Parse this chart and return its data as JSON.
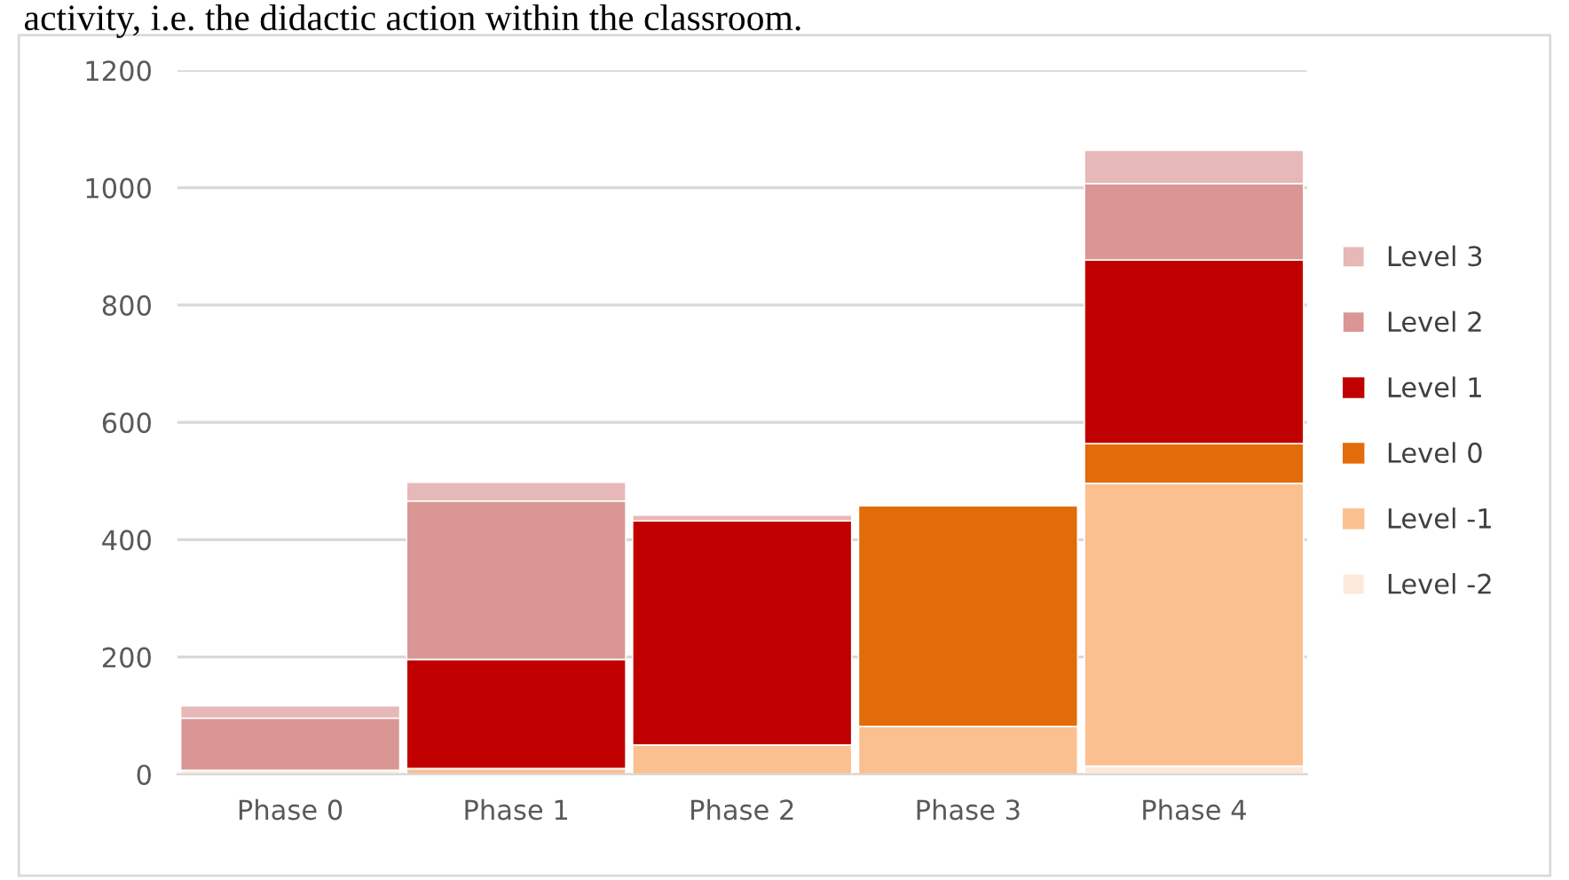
{
  "chart_data": {
    "type": "bar",
    "stacked": true,
    "annotations": [
      "activity, i.e. the didactic action within the classroom."
    ],
    "categories": [
      "Phase 0",
      "Phase 1",
      "Phase 2",
      "Phase 3",
      "Phase 4"
    ],
    "series": [
      {
        "name": "Level -2",
        "color": "#fde9d9",
        "values": [
          7,
          null,
          0,
          0,
          14
        ]
      },
      {
        "name": "Level -1",
        "color": "#fac090",
        "values": [
          0,
          10,
          50,
          82,
          482
        ]
      },
      {
        "name": "Level 0",
        "color": "#e26b0a",
        "values": [
          0,
          0,
          0,
          376,
          68
        ]
      },
      {
        "name": "Level 1",
        "color": "#c00000",
        "values": [
          0,
          186,
          382,
          0,
          313
        ]
      },
      {
        "name": "Level 2",
        "color": "#d99694",
        "values": [
          89,
          270,
          0,
          0,
          130
        ]
      },
      {
        "name": "Level 3",
        "color": "#e6b8b7",
        "values": [
          21,
          32,
          10,
          0,
          57
        ]
      }
    ],
    "ylim": [
      0,
      1200
    ],
    "yticks": [
      0,
      200,
      400,
      600,
      800,
      1000,
      1200
    ],
    "grid": "y",
    "legend": "right"
  }
}
